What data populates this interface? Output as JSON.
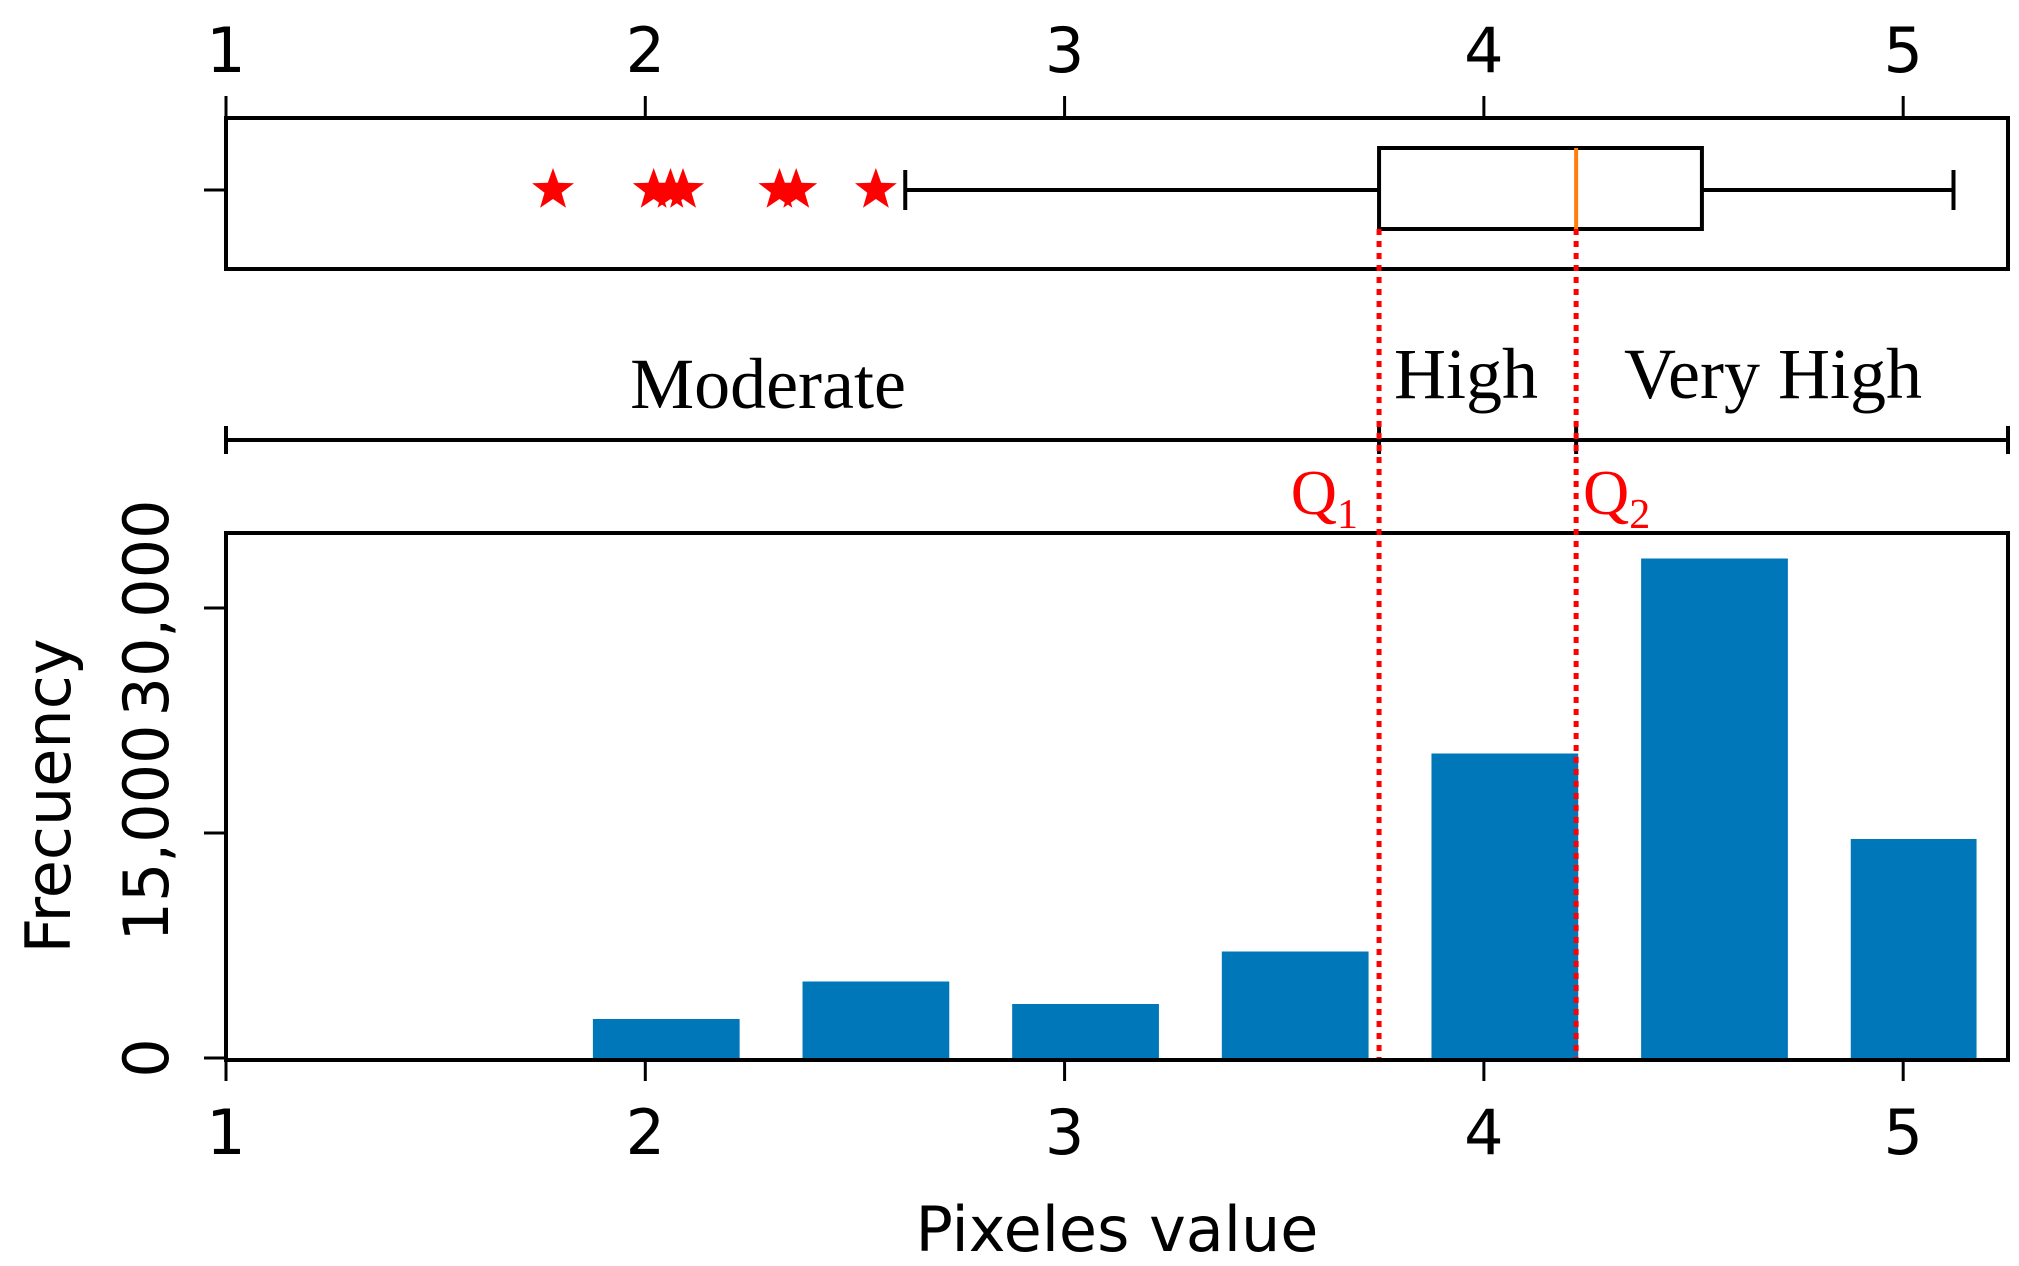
{
  "chart_data": [
    {
      "type": "box",
      "xlim": [
        1,
        5.25
      ],
      "x_ticks": [
        1,
        2,
        3,
        4,
        5
      ],
      "tick_labels": [
        "1",
        "2",
        "3",
        "4",
        "5"
      ],
      "box": {
        "whisker_low": 2.62,
        "q1": 3.75,
        "median": 4.22,
        "q3": 4.52,
        "whisker_high": 5.12
      },
      "outliers": [
        1.78,
        2.02,
        2.06,
        2.09,
        2.32,
        2.36,
        2.55
      ],
      "colors": {
        "box": "#000000",
        "median": "#ff7f0e",
        "outlier": "#ff0000"
      }
    },
    {
      "type": "range_labels",
      "xlim": [
        1,
        5.25
      ],
      "breaks": [
        1,
        3.75,
        4.22,
        5.25
      ],
      "ranges": [
        {
          "label": "Moderate",
          "from": 1,
          "to": 3.75
        },
        {
          "label": "High",
          "from": 3.75,
          "to": 4.22
        },
        {
          "label": "Very High",
          "from": 4.22,
          "to": 5.25
        }
      ]
    },
    {
      "type": "bar",
      "xlabel": "Pixeles value",
      "ylabel": "Frecuency",
      "xlim": [
        1,
        5.25
      ],
      "ylim": [
        0,
        35000
      ],
      "x_ticks": [
        1,
        2,
        3,
        4,
        5
      ],
      "x_tick_labels": [
        "1",
        "2",
        "3",
        "4",
        "5"
      ],
      "y_ticks": [
        0,
        15000,
        30000
      ],
      "y_tick_labels": [
        "0",
        "15,000",
        "30,000"
      ],
      "bin_edges": [
        1.0,
        1.8,
        2.3,
        2.8,
        3.3,
        3.8,
        4.3,
        4.8,
        5.25
      ],
      "values": [
        0,
        2600,
        5100,
        3600,
        7100,
        20300,
        33300,
        14600
      ],
      "color": "#0077b8"
    }
  ],
  "annotations": {
    "q1_label": "Q",
    "q1_sub": "1",
    "q2_label": "Q",
    "q2_sub": "2",
    "q1_value": 3.75,
    "q2_value": 4.22,
    "color": "#ff0000"
  }
}
